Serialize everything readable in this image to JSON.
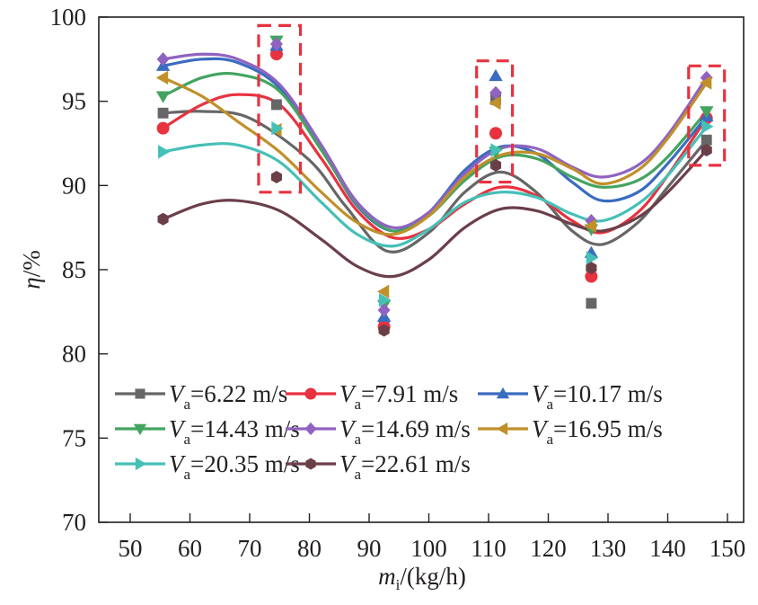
{
  "chart_data": {
    "type": "scatter",
    "title": "",
    "xlabel": "m_i/(kg/h)",
    "xlabel_main": "m",
    "xlabel_sub": "i",
    "xlabel_unit": "/(kg/h)",
    "ylabel": "η/%",
    "ylabel_main": "η",
    "ylabel_unit": "/%",
    "xlim": [
      45,
      155
    ],
    "ylim": [
      70,
      100
    ],
    "x_ticks": [
      50,
      60,
      70,
      80,
      90,
      100,
      110,
      120,
      130,
      140,
      150
    ],
    "y_ticks": [
      70,
      75,
      80,
      85,
      90,
      95,
      100
    ],
    "grid": false,
    "legend_position": "bottom-left",
    "x": [
      55.5,
      74.5,
      92.5,
      111.2,
      127.2,
      146.5
    ],
    "series": [
      {
        "name": "Va=6.22 m/s",
        "label_prefix": "V",
        "label_sub": "a",
        "label_value": "=6.22 m/s",
        "color": "#666666",
        "marker": "square",
        "values": [
          94.3,
          94.8,
          81.8,
          95.1,
          83.0,
          92.7
        ]
      },
      {
        "name": "Va=7.91 m/s",
        "label_prefix": "V",
        "label_sub": "a",
        "label_value": "=7.91 m/s",
        "color": "#e8323f",
        "marker": "circle",
        "values": [
          93.4,
          97.8,
          81.6,
          93.1,
          84.6,
          94.0
        ]
      },
      {
        "name": "Va=10.17 m/s",
        "label_prefix": "V",
        "label_sub": "a",
        "label_value": "=10.17 m/s",
        "color": "#3a6cc0",
        "marker": "triangle-up",
        "values": [
          97.1,
          98.3,
          82.2,
          96.5,
          86.0,
          94.1
        ]
      },
      {
        "name": "Va=14.43 m/s",
        "label_prefix": "V",
        "label_sub": "a",
        "label_value": "=14.43 m/s",
        "color": "#43a45f",
        "marker": "triangle-down",
        "values": [
          95.3,
          98.6,
          82.9,
          92.0,
          87.4,
          94.4
        ]
      },
      {
        "name": "Va=14.69 m/s",
        "label_prefix": "V",
        "label_sub": "a",
        "label_value": "=14.69 m/s",
        "color": "#9063c0",
        "marker": "diamond",
        "values": [
          97.5,
          98.4,
          82.6,
          95.5,
          87.9,
          96.4
        ]
      },
      {
        "name": "Va=16.95 m/s",
        "label_prefix": "V",
        "label_sub": "a",
        "label_value": "=16.95 m/s",
        "color": "#c0902a",
        "marker": "triangle-left",
        "values": [
          96.4,
          93.3,
          83.7,
          94.9,
          87.6,
          96.1
        ]
      },
      {
        "name": "Va=20.35 m/s",
        "label_prefix": "V",
        "label_sub": "a",
        "label_value": "=20.35 m/s",
        "color": "#45c0b6",
        "marker": "triangle-right",
        "values": [
          92.0,
          93.4,
          83.2,
          92.1,
          85.7,
          93.5
        ]
      },
      {
        "name": "Va=22.61 m/s",
        "label_prefix": "V",
        "label_sub": "a",
        "label_value": "=22.61 m/s",
        "color": "#6b3f4a",
        "marker": "hexagon",
        "values": [
          88.0,
          90.5,
          81.4,
          91.2,
          85.1,
          92.1
        ]
      }
    ],
    "fit_curves_note": "smooth fitted curve per series",
    "fit_curves": [
      {
        "series": 0,
        "x": [
          55.5,
          62,
          70,
          80,
          86,
          93,
          100,
          106,
          112,
          118,
          124,
          129,
          135,
          140,
          146.5
        ],
        "y": [
          94.3,
          94.4,
          94.0,
          91.5,
          88.8,
          86.1,
          87.2,
          89.6,
          90.8,
          89.6,
          87.3,
          86.5,
          87.8,
          89.9,
          92.7
        ]
      },
      {
        "series": 1,
        "x": [
          55.5,
          62,
          68,
          75,
          82,
          88,
          94,
          100,
          106,
          112,
          118,
          124,
          129,
          135,
          140,
          146.5
        ],
        "y": [
          93.4,
          94.8,
          95.4,
          94.8,
          91.6,
          88.5,
          86.9,
          87.4,
          88.9,
          89.9,
          89.4,
          87.9,
          87.2,
          88.4,
          90.6,
          94.0
        ]
      },
      {
        "series": 2,
        "x": [
          55.5,
          62,
          68,
          75,
          82,
          88,
          94,
          100,
          106,
          112,
          118,
          124,
          129,
          135,
          140,
          146.5
        ],
        "y": [
          97.1,
          97.5,
          97.3,
          95.8,
          92.2,
          88.8,
          87.3,
          88.4,
          90.9,
          92.3,
          91.9,
          90.2,
          89.1,
          89.6,
          91.3,
          94.1
        ]
      },
      {
        "series": 3,
        "x": [
          55.5,
          62,
          68,
          75,
          82,
          88,
          94,
          100,
          106,
          112,
          118,
          124,
          129,
          135,
          140,
          146.5
        ],
        "y": [
          95.3,
          96.4,
          96.6,
          95.6,
          92.1,
          88.9,
          87.3,
          88.2,
          90.3,
          91.7,
          91.6,
          90.5,
          89.9,
          90.3,
          91.7,
          94.4
        ]
      },
      {
        "series": 4,
        "x": [
          55.5,
          62,
          68,
          75,
          82,
          88,
          94,
          100,
          106,
          112,
          118,
          124,
          129,
          135,
          140,
          146.5
        ],
        "y": [
          97.5,
          97.8,
          97.5,
          96.0,
          92.4,
          89.0,
          87.5,
          88.4,
          90.7,
          92.2,
          92.2,
          91.1,
          90.5,
          91.2,
          93.0,
          96.4
        ]
      },
      {
        "series": 5,
        "x": [
          55.5,
          62,
          68,
          75,
          82,
          88,
          94,
          100,
          106,
          112,
          118,
          124,
          129,
          135,
          140,
          146.5
        ],
        "y": [
          96.4,
          95.3,
          93.8,
          92.0,
          89.6,
          87.8,
          87.1,
          88.2,
          90.5,
          91.8,
          91.9,
          91.0,
          90.1,
          90.9,
          92.8,
          96.1
        ]
      },
      {
        "series": 6,
        "x": [
          55.5,
          62,
          68,
          75,
          82,
          88,
          94,
          100,
          106,
          112,
          118,
          124,
          129,
          135,
          140,
          146.5
        ],
        "y": [
          92.0,
          92.4,
          92.4,
          91.4,
          89.0,
          87.1,
          86.4,
          87.4,
          89.0,
          89.6,
          89.3,
          88.3,
          87.9,
          88.9,
          90.6,
          93.5
        ]
      },
      {
        "series": 7,
        "x": [
          55.5,
          62,
          68,
          75,
          82,
          88,
          94,
          100,
          106,
          112,
          118,
          124,
          129,
          135,
          140,
          146.5
        ],
        "y": [
          88.0,
          88.9,
          89.1,
          88.5,
          86.8,
          85.2,
          84.6,
          85.6,
          87.5,
          88.6,
          88.5,
          87.7,
          87.3,
          88.1,
          89.6,
          92.1
        ]
      }
    ],
    "highlight_boxes_note": "red dashed rectangles highlighting marker clusters, in data units",
    "highlight_boxes": [
      {
        "x": [
          71.5,
          78.5
        ],
        "y": [
          89.6,
          99.5
        ]
      },
      {
        "x": [
          108.0,
          114.0
        ],
        "y": [
          90.2,
          97.4
        ]
      },
      {
        "x": [
          143.5,
          149.5
        ],
        "y": [
          91.2,
          97.1
        ]
      }
    ],
    "highlight_color": "#e8323f"
  }
}
